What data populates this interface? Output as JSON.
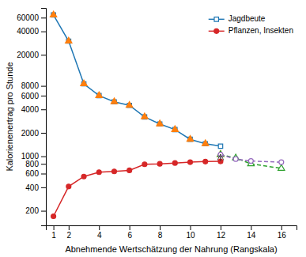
{
  "chart_data": {
    "type": "line",
    "xlabel": "Abnehmende Wertschätzung der Nahrung (Rangskala)",
    "ylabel": "Kalorienenertrag pro Stunde",
    "log": "y",
    "xlim": [
      0.5,
      17
    ],
    "xticks": [
      1,
      2,
      4,
      6,
      8,
      10,
      12,
      14,
      16
    ],
    "ylim": [
      130,
      80000
    ],
    "yticks": [
      200,
      400,
      600,
      800,
      1000,
      2000,
      4000,
      6000,
      8000,
      20000,
      40000,
      60000
    ],
    "legend": "upper-right",
    "series": [
      {
        "name": "Jagdbeute",
        "type": "line",
        "x": [
          1,
          2,
          3,
          4,
          5,
          6,
          7,
          8,
          9,
          10,
          11,
          12
        ],
        "values": [
          65000,
          30000,
          8500,
          6000,
          5000,
          4500,
          3200,
          2600,
          2200,
          1650,
          1450,
          1350
        ],
        "marker": "square-open",
        "line_style": "solid"
      },
      {
        "type": "scatter",
        "x": [
          1,
          2,
          3,
          4,
          5,
          6,
          7,
          8,
          9,
          10,
          11,
          12
        ],
        "values": [
          65000,
          30000,
          8500,
          6000,
          5000,
          4500,
          3200,
          2600,
          2200,
          1650,
          1450,
          1050
        ],
        "marker": "triangle-filled"
      },
      {
        "type": "line",
        "x": [
          12,
          13,
          14,
          16
        ],
        "values": [
          1050,
          950,
          800,
          700
        ],
        "marker": "triangle-open",
        "line_style": "dashed"
      },
      {
        "name": "Pflanzen, Insekten",
        "type": "line",
        "x": [
          1,
          2,
          3,
          4,
          5,
          6,
          7,
          8,
          9,
          10,
          11,
          12
        ],
        "values": [
          170,
          410,
          550,
          625,
          640,
          660,
          790,
          800,
          820,
          840,
          855,
          860
        ],
        "marker": "circle-filled",
        "line_style": "solid"
      },
      {
        "type": "line",
        "x": [
          12,
          13,
          14,
          16
        ],
        "values": [
          1050,
          920,
          870,
          840
        ],
        "marker": "circle-open",
        "line_style": "dashed"
      }
    ],
    "arrows": [
      {
        "x": 12,
        "y_from": 870,
        "y_to": 1050
      }
    ]
  }
}
